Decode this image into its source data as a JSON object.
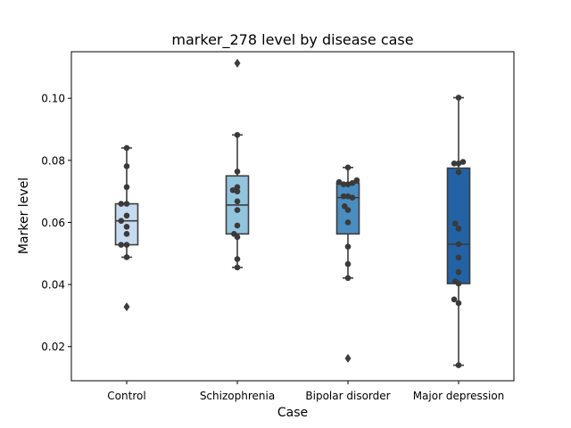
{
  "chart_data": {
    "type": "box",
    "title": "marker_278 level by disease case",
    "xlabel": "Case",
    "ylabel": "Marker level",
    "categories": [
      "Control",
      "Schizophrenia",
      "Bipolar disorder",
      "Major depression"
    ],
    "ylim": [
      0.009,
      0.115
    ],
    "yticks": [
      0.02,
      0.04,
      0.06,
      0.08,
      0.1
    ],
    "ytick_labels": [
      "0.02",
      "0.04",
      "0.06",
      "0.08",
      "0.10"
    ],
    "grid": false,
    "colors": [
      "#c6dbef",
      "#93c4de",
      "#4a8dc0",
      "#2262a5"
    ],
    "boxes": [
      {
        "q1": 0.0528,
        "median": 0.0605,
        "q3": 0.066,
        "whisker_low": 0.0488,
        "whisker_high": 0.084,
        "outliers": [
          0.0328
        ]
      },
      {
        "q1": 0.0563,
        "median": 0.0656,
        "q3": 0.075,
        "whisker_low": 0.0455,
        "whisker_high": 0.0882,
        "outliers": [
          0.1113
        ]
      },
      {
        "q1": 0.0563,
        "median": 0.068,
        "q3": 0.0727,
        "whisker_low": 0.0421,
        "whisker_high": 0.0777,
        "outliers": [
          0.0162
        ]
      },
      {
        "q1": 0.0403,
        "median": 0.053,
        "q3": 0.0775,
        "whisker_low": 0.014,
        "whisker_high": 0.1002,
        "outliers": []
      }
    ],
    "points": [
      [
        {
          "dx": 0.0,
          "y": 0.084
        },
        {
          "dx": 0.0,
          "y": 0.0781
        },
        {
          "dx": 0.0,
          "y": 0.0714
        },
        {
          "dx": -0.05,
          "y": 0.066
        },
        {
          "dx": 0.0,
          "y": 0.066
        },
        {
          "dx": 0.0,
          "y": 0.0622
        },
        {
          "dx": -0.05,
          "y": 0.0605
        },
        {
          "dx": 0.0,
          "y": 0.0586
        },
        {
          "dx": 0.0,
          "y": 0.0563
        },
        {
          "dx": -0.05,
          "y": 0.0528
        },
        {
          "dx": 0.0,
          "y": 0.0528
        },
        {
          "dx": 0.0,
          "y": 0.0488
        }
      ],
      [
        {
          "dx": 0.0,
          "y": 0.0882
        },
        {
          "dx": 0.0,
          "y": 0.0764
        },
        {
          "dx": 0.0,
          "y": 0.0714
        },
        {
          "dx": -0.04,
          "y": 0.0704
        },
        {
          "dx": 0.0,
          "y": 0.07
        },
        {
          "dx": 0.0,
          "y": 0.0668
        },
        {
          "dx": 0.0,
          "y": 0.064
        },
        {
          "dx": 0.0,
          "y": 0.059
        },
        {
          "dx": -0.03,
          "y": 0.0563
        },
        {
          "dx": 0.0,
          "y": 0.0553
        },
        {
          "dx": 0.0,
          "y": 0.0482
        },
        {
          "dx": 0.0,
          "y": 0.0455
        }
      ],
      [
        {
          "dx": 0.0,
          "y": 0.0777
        },
        {
          "dx": -0.08,
          "y": 0.073
        },
        {
          "dx": -0.04,
          "y": 0.0723
        },
        {
          "dx": 0.0,
          "y": 0.0723
        },
        {
          "dx": 0.04,
          "y": 0.0727
        },
        {
          "dx": 0.08,
          "y": 0.0736
        },
        {
          "dx": -0.04,
          "y": 0.0684
        },
        {
          "dx": 0.0,
          "y": 0.0684
        },
        {
          "dx": 0.04,
          "y": 0.068
        },
        {
          "dx": -0.03,
          "y": 0.0652
        },
        {
          "dx": 0.0,
          "y": 0.064
        },
        {
          "dx": 0.0,
          "y": 0.06
        },
        {
          "dx": 0.0,
          "y": 0.0522
        },
        {
          "dx": 0.0,
          "y": 0.0466
        },
        {
          "dx": 0.0,
          "y": 0.0421
        }
      ],
      [
        {
          "dx": 0.0,
          "y": 0.1002
        },
        {
          "dx": -0.04,
          "y": 0.079
        },
        {
          "dx": 0.0,
          "y": 0.079
        },
        {
          "dx": 0.04,
          "y": 0.0795
        },
        {
          "dx": 0.0,
          "y": 0.0762
        },
        {
          "dx": -0.03,
          "y": 0.0596
        },
        {
          "dx": 0.0,
          "y": 0.058
        },
        {
          "dx": 0.0,
          "y": 0.053
        },
        {
          "dx": 0.0,
          "y": 0.0487
        },
        {
          "dx": 0.0,
          "y": 0.044
        },
        {
          "dx": -0.03,
          "y": 0.041
        },
        {
          "dx": 0.0,
          "y": 0.0403
        },
        {
          "dx": -0.04,
          "y": 0.0352
        },
        {
          "dx": 0.0,
          "y": 0.034
        },
        {
          "dx": 0.0,
          "y": 0.014
        }
      ]
    ]
  }
}
